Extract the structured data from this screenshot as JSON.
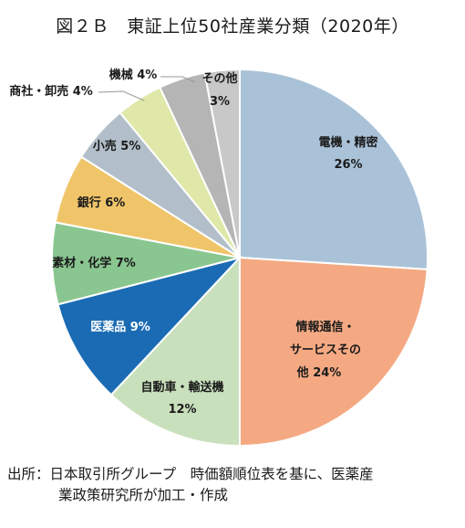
{
  "figure": {
    "title": "図２Ｂ　東証上位50社産業分類（2020年）",
    "source_line1": "出所：日本取引所グループ　時価額順位表を基に、医薬産",
    "source_line2": "業政策研究所が加工・作成"
  },
  "chart_data": {
    "type": "pie",
    "title": "図２Ｂ　東証上位50社産業分類（2020年）",
    "start": "12 o'clock, clockwise",
    "slices": [
      {
        "name": "電機・精密",
        "value": 26,
        "label": "26%",
        "color": "#a9c2d8"
      },
      {
        "name": "情報通信・サービスその他",
        "value": 24,
        "label": "24%",
        "color": "#f4a983"
      },
      {
        "name": "自動車・輸送機",
        "value": 12,
        "label": "12%",
        "color": "#c9e0bc"
      },
      {
        "name": "医薬品",
        "value": 9,
        "label": "9%",
        "color": "#1a6bb4"
      },
      {
        "name": "素材・化学",
        "value": 7,
        "label": "7%",
        "color": "#8ac690"
      },
      {
        "name": "銀行",
        "value": 6,
        "label": "6%",
        "color": "#f0c56a"
      },
      {
        "name": "小売",
        "value": 5,
        "label": "5%",
        "color": "#b2bfca"
      },
      {
        "name": "商社・卸売",
        "value": 4,
        "label": "4%",
        "color": "#dfe8a8"
      },
      {
        "name": "機械",
        "value": 4,
        "label": "4%",
        "color": "#b5b5b5"
      },
      {
        "name": "その他",
        "value": 3,
        "label": "3%",
        "color": "#c8c8c8"
      }
    ]
  }
}
